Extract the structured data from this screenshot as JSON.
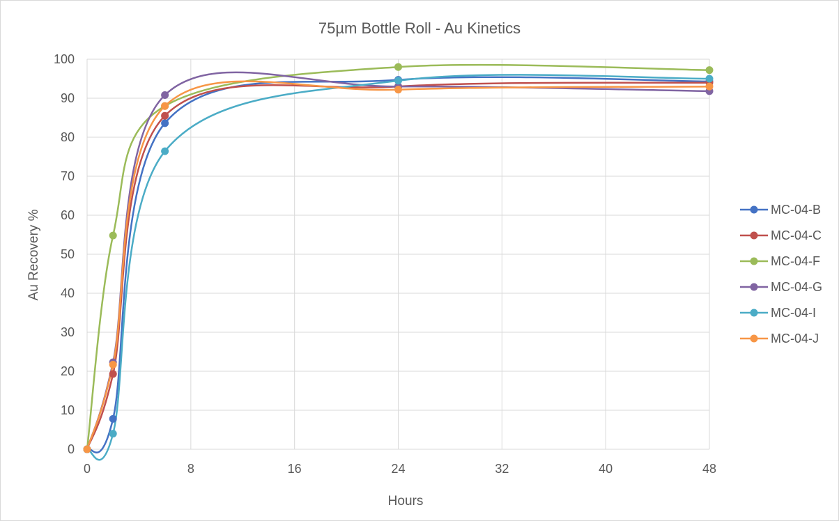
{
  "chart_data": {
    "type": "line",
    "title": "75µm Bottle Roll - Au Kinetics",
    "xlabel": "Hours",
    "ylabel": "Au Recovery %",
    "xlim": [
      0,
      48
    ],
    "ylim": [
      0,
      100
    ],
    "xticks": [
      0,
      8,
      16,
      24,
      32,
      40,
      48
    ],
    "yticks": [
      0,
      10,
      20,
      30,
      40,
      50,
      60,
      70,
      80,
      90,
      100
    ],
    "grid": true,
    "legend": "right",
    "x": [
      0,
      2,
      6,
      24,
      48
    ],
    "series": [
      {
        "name": "MC-04-B",
        "color": "#4472c4",
        "values": [
          0,
          7.8,
          83.6,
          94.7,
          94.3
        ]
      },
      {
        "name": "MC-04-C",
        "color": "#c0504d",
        "values": [
          0,
          19.3,
          85.5,
          93.0,
          94.0
        ]
      },
      {
        "name": "MC-04-F",
        "color": "#9bbb59",
        "values": [
          0,
          54.8,
          88.0,
          98.0,
          97.2
        ]
      },
      {
        "name": "MC-04-G",
        "color": "#8064a2",
        "values": [
          0,
          22.3,
          90.8,
          93.0,
          91.8
        ]
      },
      {
        "name": "MC-04-I",
        "color": "#4bacc6",
        "values": [
          0,
          4.0,
          76.4,
          94.5,
          95.0
        ]
      },
      {
        "name": "MC-04-J",
        "color": "#f79646",
        "values": [
          0,
          21.7,
          88.0,
          92.2,
          93.0
        ]
      }
    ]
  }
}
